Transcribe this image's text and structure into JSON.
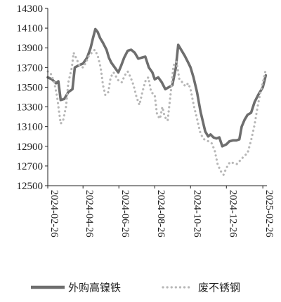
{
  "chart_data": {
    "type": "line",
    "title": "",
    "xlabel": "",
    "ylabel": "",
    "ylim": [
      12500,
      14300
    ],
    "y_ticks": [
      "14300",
      "14100",
      "13900",
      "13700",
      "13500",
      "13300",
      "13100",
      "12900",
      "12700",
      "12500"
    ],
    "x_ticks": [
      "2024-02-26",
      "2024-04-26",
      "2024-06-26",
      "2024-08-26",
      "2024-10-26",
      "2024-12-26",
      "2025-02-26"
    ],
    "grid": false,
    "legend_position": "bottom",
    "series": [
      {
        "name": "外购高镍铁",
        "color": "#6e6e6e",
        "style": "solid",
        "points": [
          [
            "2024-02-26",
            13600
          ],
          [
            "2024-03-04",
            13580
          ],
          [
            "2024-03-11",
            13540
          ],
          [
            "2024-03-15",
            13560
          ],
          [
            "2024-03-19",
            13370
          ],
          [
            "2024-03-25",
            13380
          ],
          [
            "2024-04-01",
            13450
          ],
          [
            "2024-04-08",
            13480
          ],
          [
            "2024-04-12",
            13700
          ],
          [
            "2024-04-18",
            13720
          ],
          [
            "2024-04-26",
            13740
          ],
          [
            "2024-05-03",
            13800
          ],
          [
            "2024-05-09",
            13900
          ],
          [
            "2024-05-13",
            14000
          ],
          [
            "2024-05-17",
            14090
          ],
          [
            "2024-05-21",
            14060
          ],
          [
            "2024-05-25",
            14000
          ],
          [
            "2024-05-30",
            13950
          ],
          [
            "2024-06-05",
            13880
          ],
          [
            "2024-06-09",
            13800
          ],
          [
            "2024-06-13",
            13750
          ],
          [
            "2024-06-19",
            13700
          ],
          [
            "2024-06-25",
            13650
          ],
          [
            "2024-06-30",
            13720
          ],
          [
            "2024-07-05",
            13800
          ],
          [
            "2024-07-11",
            13870
          ],
          [
            "2024-07-17",
            13880
          ],
          [
            "2024-07-23",
            13850
          ],
          [
            "2024-07-29",
            13790
          ],
          [
            "2024-08-04",
            13800
          ],
          [
            "2024-08-10",
            13810
          ],
          [
            "2024-08-16",
            13700
          ],
          [
            "2024-08-22",
            13650
          ],
          [
            "2024-08-26",
            13580
          ],
          [
            "2024-09-01",
            13600
          ],
          [
            "2024-09-07",
            13550
          ],
          [
            "2024-09-13",
            13480
          ],
          [
            "2024-09-19",
            13500
          ],
          [
            "2024-09-25",
            13520
          ],
          [
            "2024-10-01",
            13700
          ],
          [
            "2024-10-05",
            13930
          ],
          [
            "2024-10-10",
            13880
          ],
          [
            "2024-10-16",
            13820
          ],
          [
            "2024-10-22",
            13750
          ],
          [
            "2024-10-26",
            13700
          ],
          [
            "2024-10-31",
            13600
          ],
          [
            "2024-11-06",
            13450
          ],
          [
            "2024-11-12",
            13250
          ],
          [
            "2024-11-16",
            13150
          ],
          [
            "2024-11-20",
            13050
          ],
          [
            "2024-11-25",
            13000
          ],
          [
            "2024-11-29",
            13020
          ],
          [
            "2024-12-04",
            12990
          ],
          [
            "2024-12-09",
            12980
          ],
          [
            "2024-12-14",
            12990
          ],
          [
            "2024-12-19",
            12900
          ],
          [
            "2024-12-26",
            12920
          ],
          [
            "2024-12-31",
            12950
          ],
          [
            "2025-01-06",
            12960
          ],
          [
            "2025-01-12",
            12960
          ],
          [
            "2025-01-17",
            12970
          ],
          [
            "2025-01-21",
            13100
          ],
          [
            "2025-01-26",
            13170
          ],
          [
            "2025-01-31",
            13220
          ],
          [
            "2025-02-06",
            13240
          ],
          [
            "2025-02-12",
            13350
          ],
          [
            "2025-02-18",
            13420
          ],
          [
            "2025-02-22",
            13460
          ],
          [
            "2025-02-26",
            13500
          ],
          [
            "2025-03-03",
            13620
          ]
        ]
      },
      {
        "name": "废不锈钢",
        "color": "#b7b7b7",
        "style": "dotted",
        "points": [
          [
            "2024-02-26",
            13660
          ],
          [
            "2024-03-02",
            13640
          ],
          [
            "2024-03-08",
            13550
          ],
          [
            "2024-03-13",
            13400
          ],
          [
            "2024-03-16",
            13260
          ],
          [
            "2024-03-19",
            13130
          ],
          [
            "2024-03-23",
            13160
          ],
          [
            "2024-03-28",
            13300
          ],
          [
            "2024-04-01",
            13550
          ],
          [
            "2024-04-07",
            13700
          ],
          [
            "2024-04-10",
            13850
          ],
          [
            "2024-04-14",
            13800
          ],
          [
            "2024-04-20",
            13720
          ],
          [
            "2024-04-26",
            13700
          ],
          [
            "2024-05-01",
            13750
          ],
          [
            "2024-05-06",
            13820
          ],
          [
            "2024-05-11",
            13850
          ],
          [
            "2024-05-16",
            13880
          ],
          [
            "2024-05-21",
            13820
          ],
          [
            "2024-05-26",
            13700
          ],
          [
            "2024-05-30",
            13520
          ],
          [
            "2024-06-03",
            13420
          ],
          [
            "2024-06-08",
            13450
          ],
          [
            "2024-06-12",
            13600
          ],
          [
            "2024-06-17",
            13650
          ],
          [
            "2024-06-22",
            13600
          ],
          [
            "2024-06-26",
            13560
          ],
          [
            "2024-07-01",
            13550
          ],
          [
            "2024-07-06",
            13620
          ],
          [
            "2024-07-11",
            13660
          ],
          [
            "2024-07-16",
            13600
          ],
          [
            "2024-07-21",
            13520
          ],
          [
            "2024-07-26",
            13400
          ],
          [
            "2024-07-31",
            13320
          ],
          [
            "2024-08-05",
            13450
          ],
          [
            "2024-08-10",
            13560
          ],
          [
            "2024-08-15",
            13600
          ],
          [
            "2024-08-20",
            13450
          ],
          [
            "2024-08-26",
            13420
          ],
          [
            "2024-08-30",
            13220
          ],
          [
            "2024-09-04",
            13180
          ],
          [
            "2024-09-08",
            13300
          ],
          [
            "2024-09-12",
            13200
          ],
          [
            "2024-09-17",
            13160
          ],
          [
            "2024-09-22",
            13430
          ],
          [
            "2024-09-27",
            13720
          ],
          [
            "2024-10-02",
            13760
          ],
          [
            "2024-10-07",
            13580
          ],
          [
            "2024-10-12",
            13550
          ],
          [
            "2024-10-17",
            13510
          ],
          [
            "2024-10-22",
            13540
          ],
          [
            "2024-10-26",
            13480
          ],
          [
            "2024-11-01",
            13300
          ],
          [
            "2024-11-06",
            13180
          ],
          [
            "2024-11-11",
            13050
          ],
          [
            "2024-11-16",
            12980
          ],
          [
            "2024-11-21",
            12960
          ],
          [
            "2024-11-26",
            12950
          ],
          [
            "2024-12-01",
            12930
          ],
          [
            "2024-12-06",
            12860
          ],
          [
            "2024-12-11",
            12720
          ],
          [
            "2024-12-16",
            12650
          ],
          [
            "2024-12-21",
            12610
          ],
          [
            "2024-12-26",
            12680
          ],
          [
            "2025-01-01",
            12740
          ],
          [
            "2025-01-07",
            12730
          ],
          [
            "2025-01-13",
            12720
          ],
          [
            "2025-01-19",
            12760
          ],
          [
            "2025-01-25",
            12800
          ],
          [
            "2025-01-31",
            12830
          ],
          [
            "2025-02-06",
            12960
          ],
          [
            "2025-02-12",
            13120
          ],
          [
            "2025-02-17",
            13300
          ],
          [
            "2025-02-22",
            13450
          ],
          [
            "2025-02-26",
            13550
          ],
          [
            "2025-03-03",
            13680
          ]
        ]
      }
    ]
  }
}
